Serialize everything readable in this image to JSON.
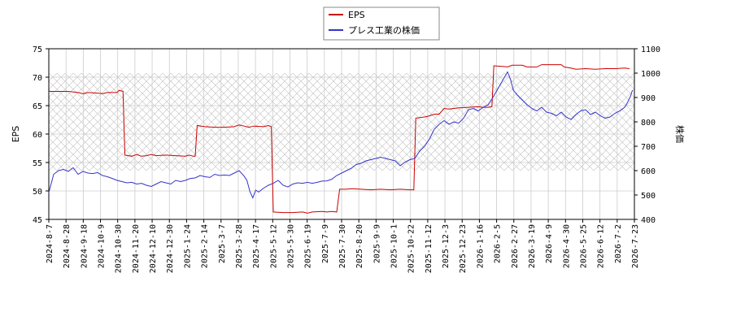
{
  "chart_data": {
    "type": "line",
    "legend": {
      "placement": "top-center",
      "entries": [
        "EPS",
        "プレス工業の株価"
      ]
    },
    "grid": true,
    "x_ticks": [
      "2024-8-7",
      "2024-8-28",
      "2024-9-18",
      "2024-10-9",
      "2024-10-30",
      "2024-11-20",
      "2024-12-10",
      "2024-12-30",
      "2025-1-24",
      "2025-2-14",
      "2025-3-7",
      "2025-3-28",
      "2025-4-17",
      "2025-5-12",
      "2025-5-30",
      "2025-6-19",
      "2025-7-9",
      "2025-7-30",
      "2025-8-20",
      "2025-9-9",
      "2025-10-1",
      "2025-10-22",
      "2025-11-12",
      "2025-12-3",
      "2025-12-23",
      "2026-1-16",
      "2026-2-5",
      "2026-2-27",
      "2026-3-19",
      "2026-4-9",
      "2026-4-30",
      "2026-5-25",
      "2026-6-12",
      "2026-7-2",
      "2026-7-23"
    ],
    "y_left": {
      "label": "EPS",
      "ticks": [
        45,
        50,
        55,
        60,
        65,
        70,
        75
      ],
      "range": [
        45,
        75
      ]
    },
    "y_right": {
      "label": "株価",
      "ticks": [
        400,
        500,
        600,
        700,
        800,
        900,
        1000,
        1100
      ],
      "range": [
        400,
        1100
      ]
    },
    "hatch_band": {
      "y_right_from": 600,
      "y_right_to": 1000
    },
    "series": [
      {
        "name": "EPS",
        "axis": "left",
        "color": "#cc0000",
        "points": [
          [
            0,
            67.5
          ],
          [
            2,
            67.5
          ],
          [
            3,
            67.3
          ],
          [
            3.5,
            67.1
          ],
          [
            4,
            67.3
          ],
          [
            5,
            67.2
          ],
          [
            5.5,
            67.1
          ],
          [
            6,
            67.3
          ],
          [
            7,
            67.3
          ],
          [
            7.2,
            67.7
          ],
          [
            7.6,
            67.5
          ],
          [
            7.8,
            56.3
          ],
          [
            8.5,
            56.1
          ],
          [
            9,
            56.4
          ],
          [
            9.5,
            56.1
          ],
          [
            10,
            56.2
          ],
          [
            10.5,
            56.4
          ],
          [
            11,
            56.2
          ],
          [
            12,
            56.3
          ],
          [
            13,
            56.2
          ],
          [
            14,
            56.1
          ],
          [
            14.4,
            56.3
          ],
          [
            14.8,
            56.1
          ],
          [
            15,
            56.1
          ],
          [
            15.2,
            61.5
          ],
          [
            16,
            61.3
          ],
          [
            17,
            61.2
          ],
          [
            18,
            61.2
          ],
          [
            19,
            61.3
          ],
          [
            19.5,
            61.6
          ],
          [
            20,
            61.4
          ],
          [
            20.5,
            61.2
          ],
          [
            21,
            61.4
          ],
          [
            22,
            61.3
          ],
          [
            22.5,
            61.5
          ],
          [
            22.8,
            61.3
          ],
          [
            23,
            46.3
          ],
          [
            24,
            46.2
          ],
          [
            25,
            46.2
          ],
          [
            26,
            46.3
          ],
          [
            26.5,
            46.1
          ],
          [
            27,
            46.3
          ],
          [
            28,
            46.4
          ],
          [
            28.5,
            46.3
          ],
          [
            29,
            46.4
          ],
          [
            29.5,
            46.3
          ],
          [
            29.8,
            50.3
          ],
          [
            30.5,
            50.3
          ],
          [
            31,
            50.4
          ],
          [
            32,
            50.3
          ],
          [
            33,
            50.2
          ],
          [
            34,
            50.3
          ],
          [
            35,
            50.2
          ],
          [
            36,
            50.3
          ],
          [
            37,
            50.2
          ],
          [
            37.4,
            50.2
          ],
          [
            37.6,
            62.8
          ],
          [
            38.5,
            63.0
          ],
          [
            39,
            63.2
          ],
          [
            39.5,
            63.5
          ],
          [
            40,
            63.5
          ],
          [
            40.5,
            64.5
          ],
          [
            41,
            64.4
          ],
          [
            42,
            64.6
          ],
          [
            43,
            64.7
          ],
          [
            44,
            64.8
          ],
          [
            44.5,
            64.7
          ],
          [
            45,
            64.7
          ],
          [
            45.4,
            64.8
          ],
          [
            45.6,
            72.0
          ],
          [
            46.5,
            71.9
          ],
          [
            47,
            71.8
          ],
          [
            47.5,
            72.1
          ],
          [
            48.5,
            72.1
          ],
          [
            49,
            71.8
          ],
          [
            50,
            71.8
          ],
          [
            50.5,
            72.2
          ],
          [
            51.5,
            72.2
          ],
          [
            52.5,
            72.2
          ],
          [
            52.8,
            71.8
          ],
          [
            53.5,
            71.6
          ],
          [
            54,
            71.4
          ],
          [
            55,
            71.5
          ],
          [
            56,
            71.4
          ],
          [
            57,
            71.5
          ],
          [
            58,
            71.5
          ],
          [
            59,
            71.6
          ],
          [
            59.5,
            71.5
          ]
        ]
      },
      {
        "name": "プレス工業の株価",
        "axis": "right",
        "color": "#3333cc",
        "points": [
          [
            0,
            510
          ],
          [
            0.5,
            585
          ],
          [
            1,
            600
          ],
          [
            1.5,
            605
          ],
          [
            2,
            597
          ],
          [
            2.5,
            612
          ],
          [
            3,
            585
          ],
          [
            3.5,
            597
          ],
          [
            4,
            590
          ],
          [
            4.5,
            588
          ],
          [
            5,
            592
          ],
          [
            5.5,
            580
          ],
          [
            6,
            575
          ],
          [
            6.5,
            568
          ],
          [
            7,
            560
          ],
          [
            7.5,
            555
          ],
          [
            8,
            550
          ],
          [
            8.5,
            552
          ],
          [
            9,
            545
          ],
          [
            9.5,
            548
          ],
          [
            10,
            540
          ],
          [
            10.5,
            535
          ],
          [
            11,
            545
          ],
          [
            11.5,
            555
          ],
          [
            12,
            550
          ],
          [
            12.5,
            545
          ],
          [
            13,
            560
          ],
          [
            13.5,
            555
          ],
          [
            14,
            560
          ],
          [
            14.5,
            568
          ],
          [
            15,
            570
          ],
          [
            15.5,
            580
          ],
          [
            16,
            575
          ],
          [
            16.5,
            572
          ],
          [
            17,
            585
          ],
          [
            17.5,
            580
          ],
          [
            18,
            582
          ],
          [
            18.5,
            580
          ],
          [
            19,
            590
          ],
          [
            19.5,
            600
          ],
          [
            20,
            578
          ],
          [
            20.3,
            560
          ],
          [
            20.6,
            515
          ],
          [
            20.9,
            488
          ],
          [
            21.2,
            520
          ],
          [
            21.5,
            512
          ],
          [
            22,
            528
          ],
          [
            22.5,
            540
          ],
          [
            23,
            548
          ],
          [
            23.5,
            560
          ],
          [
            24,
            540
          ],
          [
            24.5,
            533
          ],
          [
            25,
            545
          ],
          [
            25.5,
            550
          ],
          [
            26,
            548
          ],
          [
            26.5,
            552
          ],
          [
            27,
            548
          ],
          [
            27.5,
            552
          ],
          [
            28,
            557
          ],
          [
            28.5,
            558
          ],
          [
            29,
            565
          ],
          [
            29.5,
            580
          ],
          [
            30,
            590
          ],
          [
            30.5,
            600
          ],
          [
            31,
            610
          ],
          [
            31.5,
            625
          ],
          [
            32,
            630
          ],
          [
            32.5,
            640
          ],
          [
            33,
            645
          ],
          [
            33.5,
            650
          ],
          [
            34,
            655
          ],
          [
            34.5,
            650
          ],
          [
            35,
            645
          ],
          [
            35.5,
            640
          ],
          [
            36,
            620
          ],
          [
            36.5,
            635
          ],
          [
            37,
            645
          ],
          [
            37.5,
            650
          ],
          [
            38,
            680
          ],
          [
            38.5,
            700
          ],
          [
            39,
            730
          ],
          [
            39.5,
            770
          ],
          [
            40,
            790
          ],
          [
            40.5,
            805
          ],
          [
            41,
            790
          ],
          [
            41.5,
            800
          ],
          [
            42,
            795
          ],
          [
            42.5,
            815
          ],
          [
            43,
            850
          ],
          [
            43.5,
            855
          ],
          [
            44,
            845
          ],
          [
            44.5,
            860
          ],
          [
            45,
            870
          ],
          [
            45.5,
            900
          ],
          [
            46,
            935
          ],
          [
            46.5,
            970
          ],
          [
            47,
            1005
          ],
          [
            47.3,
            975
          ],
          [
            47.6,
            930
          ],
          [
            48,
            910
          ],
          [
            48.5,
            890
          ],
          [
            49,
            870
          ],
          [
            49.5,
            855
          ],
          [
            50,
            845
          ],
          [
            50.5,
            860
          ],
          [
            51,
            840
          ],
          [
            51.5,
            835
          ],
          [
            52,
            825
          ],
          [
            52.5,
            840
          ],
          [
            53,
            820
          ],
          [
            53.5,
            810
          ],
          [
            54,
            830
          ],
          [
            54.5,
            845
          ],
          [
            55,
            850
          ],
          [
            55.5,
            830
          ],
          [
            56,
            840
          ],
          [
            56.5,
            825
          ],
          [
            57,
            815
          ],
          [
            57.5,
            820
          ],
          [
            58,
            835
          ],
          [
            58.5,
            845
          ],
          [
            59,
            860
          ],
          [
            59.3,
            880
          ],
          [
            59.6,
            905
          ],
          [
            59.8,
            930
          ]
        ]
      }
    ],
    "x_index_range": [
      0,
      60
    ]
  }
}
